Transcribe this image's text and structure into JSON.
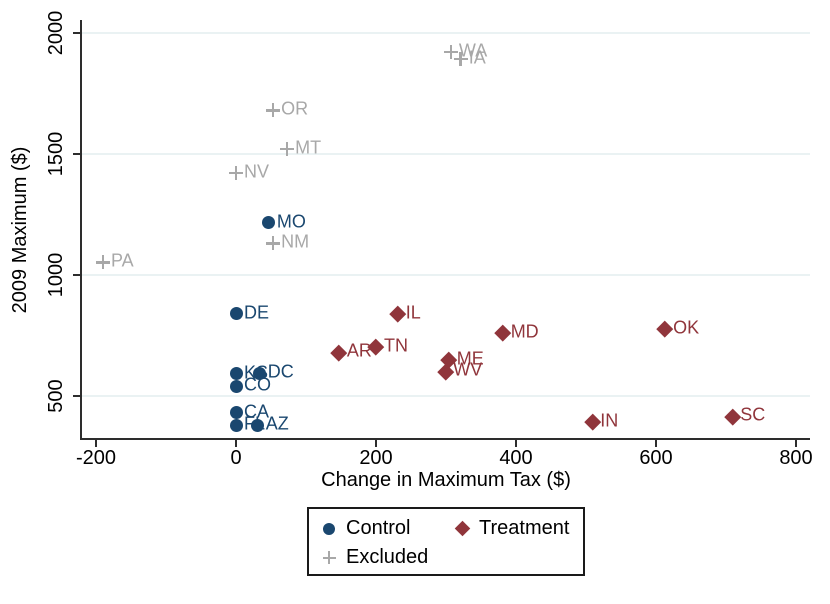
{
  "chart_data": {
    "type": "scatter",
    "title": "",
    "xlabel": "Change in Maximum Tax ($)",
    "ylabel": "2009 Maximum ($)",
    "xlim": [
      -220,
      820
    ],
    "ylim": [
      318,
      2078
    ],
    "x_ticks": [
      -200,
      0,
      200,
      400,
      600,
      800
    ],
    "y_ticks": [
      500,
      1000,
      1500,
      2000
    ],
    "grid": "horizontal",
    "legend_position": "bottom",
    "series": [
      {
        "name": "Control",
        "marker": "circle",
        "color": "#1a476f",
        "points": [
          {
            "label": "MO",
            "x": 47,
            "y": 1215
          },
          {
            "label": "DE",
            "x": 0,
            "y": 840
          },
          {
            "label": "KS",
            "x": 0,
            "y": 592
          },
          {
            "label": "DC",
            "x": 34,
            "y": 594
          },
          {
            "label": "CO",
            "x": 0,
            "y": 540
          },
          {
            "label": "CA",
            "x": 0,
            "y": 430
          },
          {
            "label": "FL",
            "x": 0,
            "y": 378
          },
          {
            "label": "AZ",
            "x": 31,
            "y": 378
          }
        ]
      },
      {
        "name": "Treatment",
        "marker": "diamond",
        "color": "#90353b",
        "points": [
          {
            "label": "IL",
            "x": 231,
            "y": 840
          },
          {
            "label": "AR",
            "x": 147,
            "y": 680
          },
          {
            "label": "TN",
            "x": 200,
            "y": 702
          },
          {
            "label": "ME",
            "x": 304,
            "y": 650
          },
          {
            "label": "WV",
            "x": 299,
            "y": 602
          },
          {
            "label": "MD",
            "x": 381,
            "y": 762
          },
          {
            "label": "OK",
            "x": 613,
            "y": 776
          },
          {
            "label": "IN",
            "x": 509,
            "y": 392
          },
          {
            "label": "SC",
            "x": 709,
            "y": 416
          }
        ]
      },
      {
        "name": "Excluded",
        "marker": "plus",
        "color": "#a8a8a8",
        "points": [
          {
            "label": "WA",
            "x": 307,
            "y": 1921
          },
          {
            "label": "IA",
            "x": 321,
            "y": 1892
          },
          {
            "label": "OR",
            "x": 53,
            "y": 1680
          },
          {
            "label": "MT",
            "x": 73,
            "y": 1521
          },
          {
            "label": "NV",
            "x": 0,
            "y": 1421
          },
          {
            "label": "NM",
            "x": 53,
            "y": 1130
          },
          {
            "label": "PA",
            "x": -190,
            "y": 1052
          }
        ]
      }
    ]
  },
  "legend": {
    "items": [
      {
        "label": "Control",
        "marker": "circle",
        "color": "#1a476f"
      },
      {
        "label": "Treatment",
        "marker": "diamond",
        "color": "#90353b"
      },
      {
        "label": "Excluded",
        "marker": "plus",
        "color": "#a8a8a8"
      }
    ]
  },
  "colors": {
    "control": "#1a476f",
    "treatment": "#90353b",
    "excluded": "#a8a8a8",
    "gridline": "#eaf2f3",
    "axis": "#2d2d2d"
  }
}
